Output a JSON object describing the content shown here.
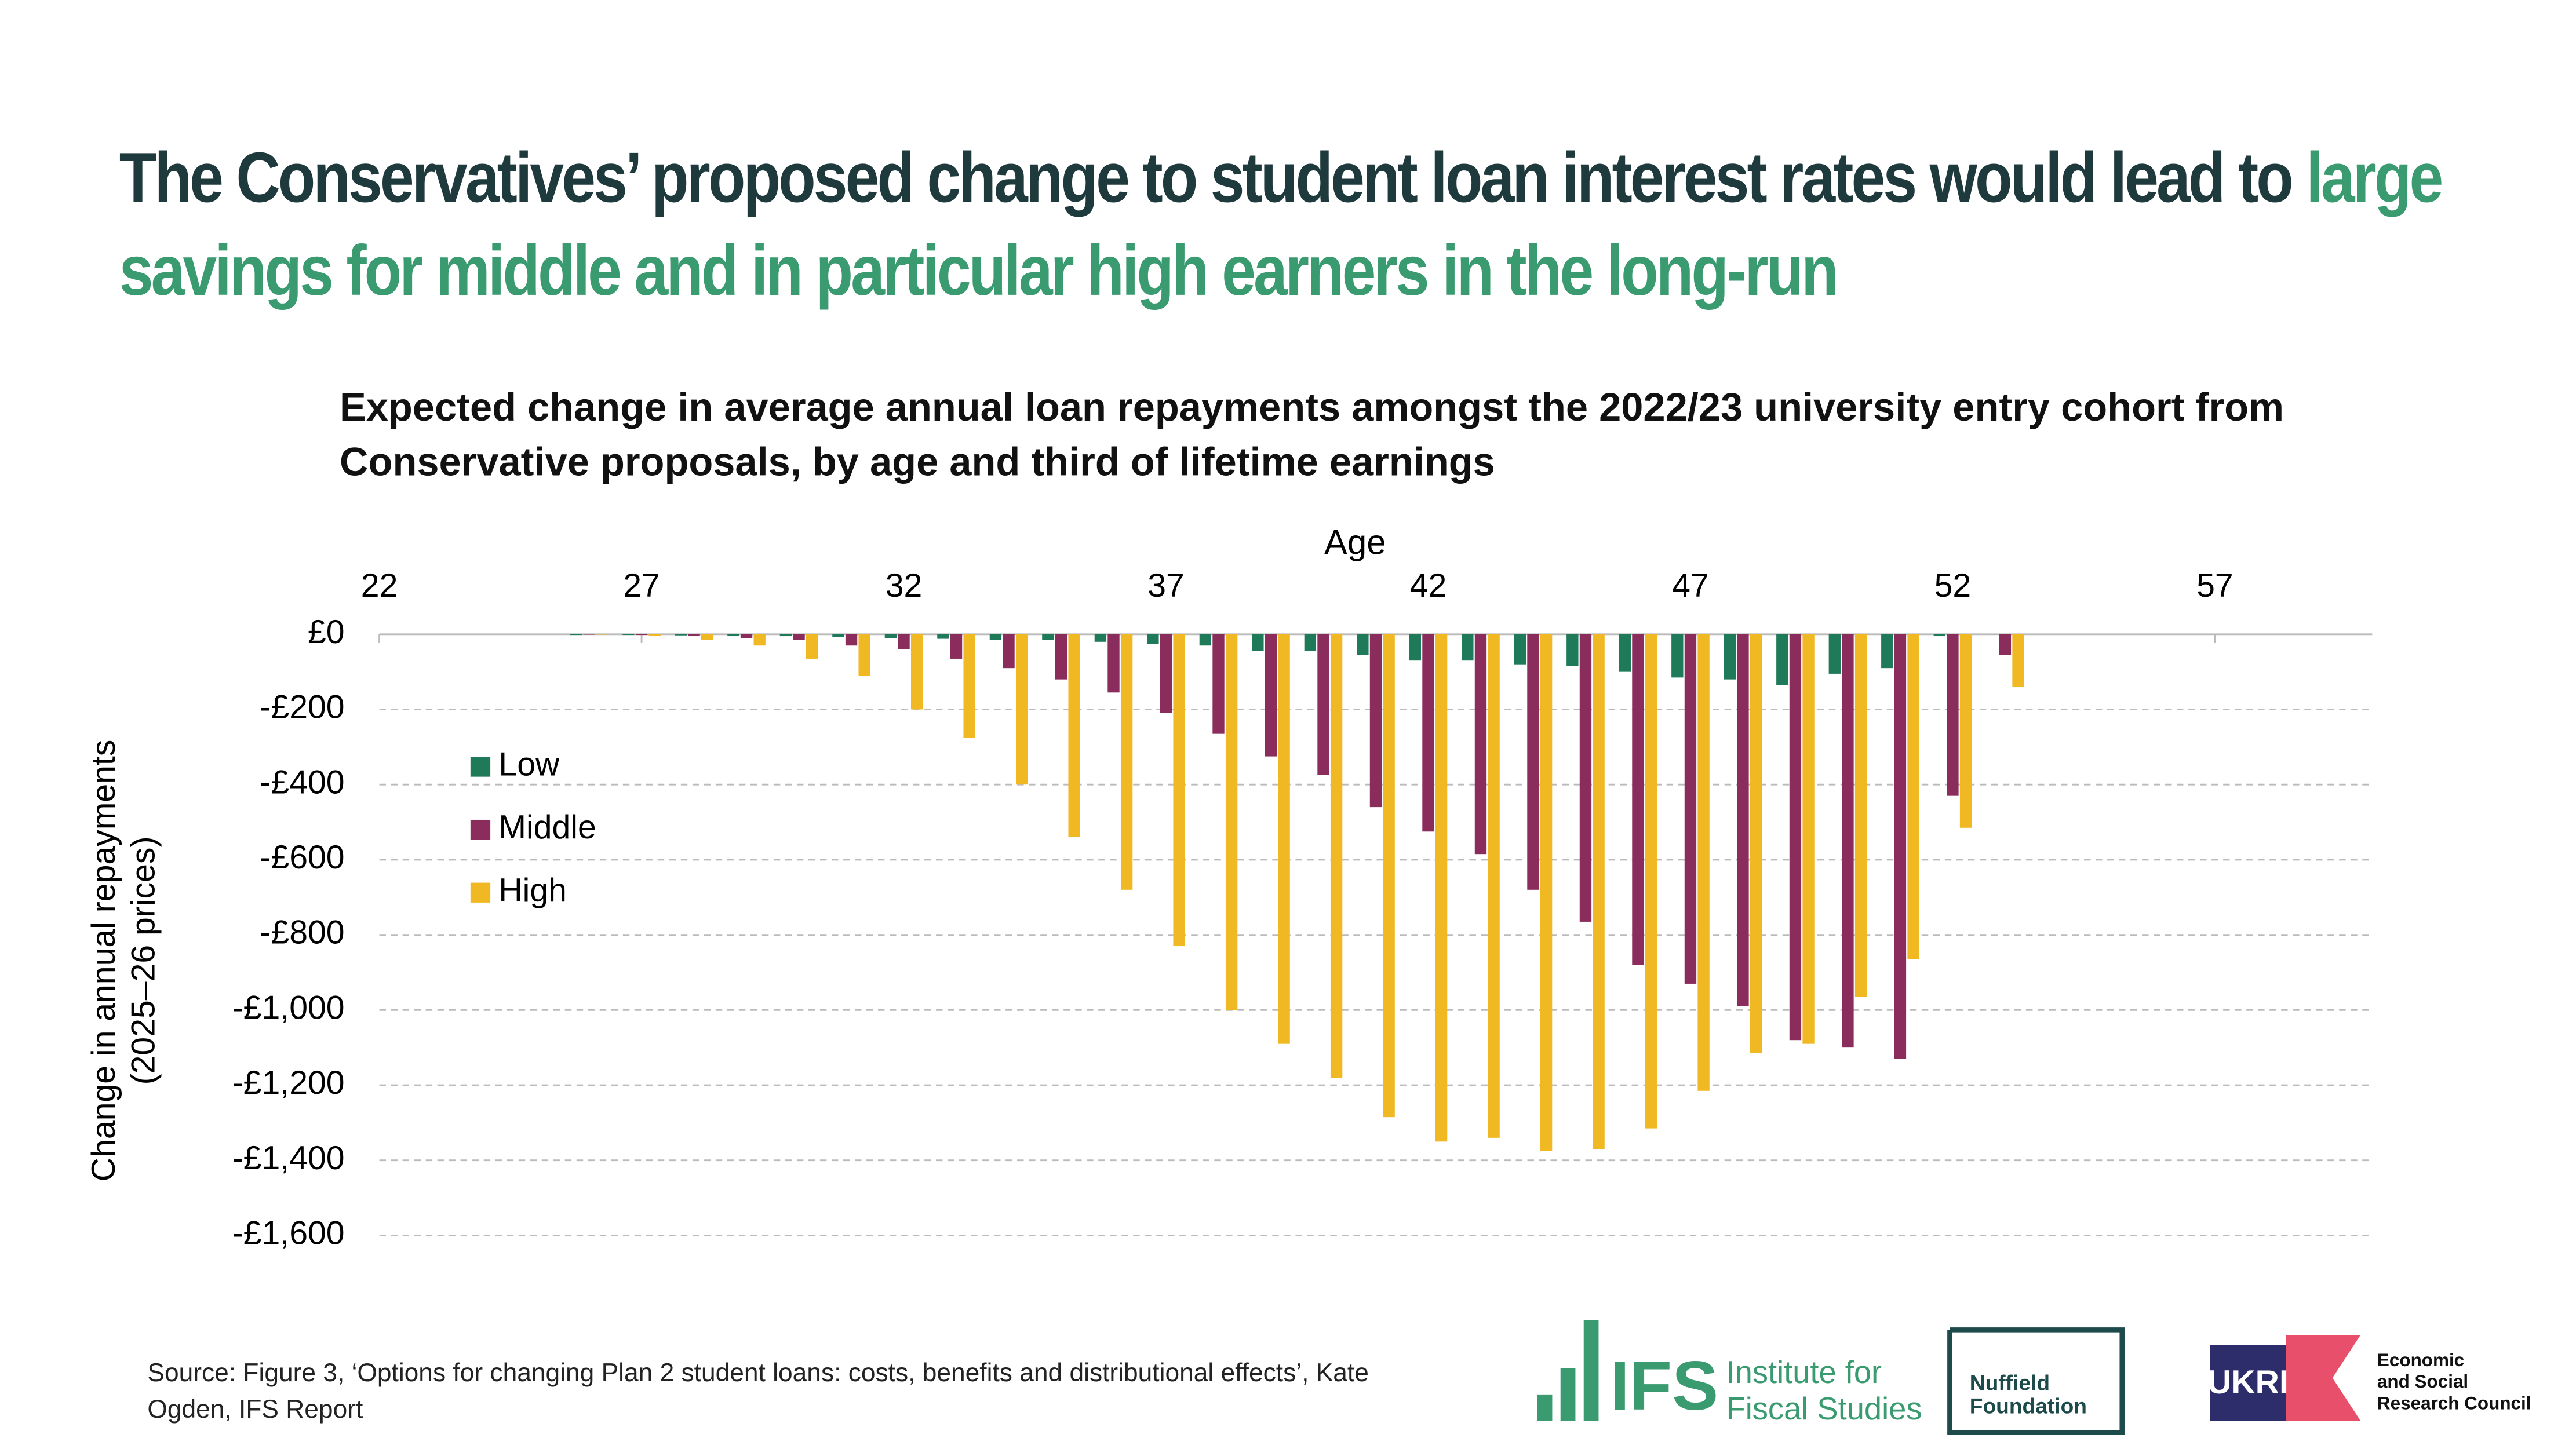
{
  "chart_data": {
    "type": "bar",
    "title": "The Conservatives’ proposed change to student loan interest rates would lead to",
    "title_highlight": "large savings for middle and in particular high earners in the long-run",
    "subtitle": "Expected change in average annual loan repayments amongst the 2022/23 university entry cohort from Conservative proposals, by age and third of lifetime earnings",
    "xlabel": "Age",
    "ylabel": [
      "Change in annual repayments",
      "(2025–26 prices)"
    ],
    "x": [
      26,
      27,
      28,
      29,
      30,
      31,
      32,
      33,
      34,
      35,
      36,
      37,
      38,
      39,
      40,
      41,
      42,
      43,
      44,
      45,
      46,
      47,
      48,
      49,
      50,
      51,
      52,
      53
    ],
    "series": [
      {
        "name": "Low",
        "color": "#1f7a5a",
        "values": [
          -2,
          -2,
          -3,
          -5,
          -5,
          -8,
          -10,
          -12,
          -15,
          -15,
          -20,
          -25,
          -30,
          -45,
          -45,
          -55,
          -70,
          -70,
          -80,
          -85,
          -100,
          -115,
          -120,
          -135,
          -105,
          -90,
          -5,
          0
        ]
      },
      {
        "name": "Middle",
        "color": "#8b2d5c",
        "values": [
          -1,
          -2,
          -5,
          -10,
          -15,
          -30,
          -40,
          -65,
          -90,
          -120,
          -155,
          -210,
          -265,
          -325,
          -375,
          -460,
          -525,
          -585,
          -680,
          -765,
          -880,
          -930,
          -990,
          -1080,
          -1100,
          -1130,
          -430,
          -55
        ]
      },
      {
        "name": "High",
        "color": "#f0b823",
        "values": [
          -1,
          -5,
          -15,
          -30,
          -65,
          -110,
          -200,
          -275,
          -400,
          -540,
          -680,
          -830,
          -1000,
          -1090,
          -1180,
          -1285,
          -1350,
          -1340,
          -1375,
          -1370,
          -1315,
          -1215,
          -1115,
          -1090,
          -965,
          -865,
          -515,
          -140
        ]
      }
    ],
    "xlim": [
      22,
      60
    ],
    "xticks": [
      22,
      27,
      32,
      37,
      42,
      47,
      52,
      57
    ],
    "ylim": [
      -1600,
      0
    ],
    "yticks": [
      {
        "value": 0,
        "label": "£0"
      },
      {
        "value": -200,
        "label": "-£200"
      },
      {
        "value": -400,
        "label": "-£400"
      },
      {
        "value": -600,
        "label": "-£600"
      },
      {
        "value": -800,
        "label": "-£800"
      },
      {
        "value": -1000,
        "label": "-£1,000"
      },
      {
        "value": -1200,
        "label": "-£1,200"
      },
      {
        "value": -1400,
        "label": "-£1,400"
      },
      {
        "value": -1600,
        "label": "-£1,600"
      }
    ],
    "grid": true,
    "legend": "upper left"
  },
  "source": "Source: Figure 3, ‘Options for changing Plan 2 student loans: costs, benefits and distributional effects’, Kate Ogden, IFS Report",
  "logos": {
    "ifs": "IFS",
    "ifs_name": [
      "Institute for",
      "Fiscal Studies"
    ],
    "nuffield": [
      "Nuffield",
      "Foundation"
    ],
    "ukri": [
      "Economic",
      "and Social",
      "Research Council"
    ]
  }
}
